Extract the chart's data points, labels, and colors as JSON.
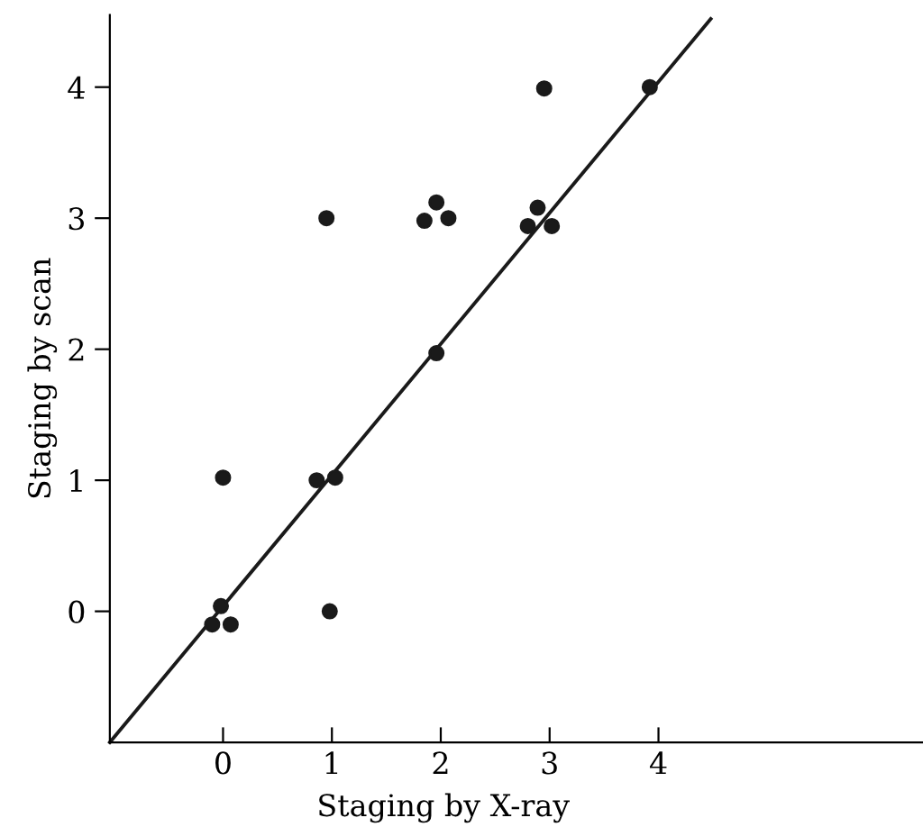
{
  "chart_data": {
    "type": "scatter",
    "xlabel": "Staging by X-ray",
    "ylabel": "Staging by scan",
    "xlim": [
      -1.04,
      6.43
    ],
    "ylim": [
      -1.0,
      4.55
    ],
    "xticks": [
      0,
      1,
      2,
      3,
      4
    ],
    "yticks": [
      0,
      1,
      2,
      3,
      4
    ],
    "grid": false,
    "marker": "circle",
    "series": [
      {
        "color": "#1a1a1a",
        "x": [
          0.95,
          1.85,
          1.96,
          2.07,
          1.96,
          2.8,
          2.89,
          3.02,
          2.95,
          3.92,
          0.0,
          0.86,
          1.03,
          -0.02,
          -0.1,
          0.07,
          0.98
        ],
        "values": [
          3.0,
          2.98,
          3.12,
          3.0,
          1.97,
          2.94,
          3.08,
          2.94,
          3.99,
          4.0,
          1.02,
          1.0,
          1.02,
          0.04,
          -0.1,
          -0.1,
          0.0
        ]
      },
      {
        "type": "line",
        "color": "#1a1a1a",
        "marker": "none",
        "line_style": "solid",
        "x": [
          -1.04,
          4.48
        ],
        "values": [
          -1.0,
          4.52
        ]
      }
    ]
  }
}
